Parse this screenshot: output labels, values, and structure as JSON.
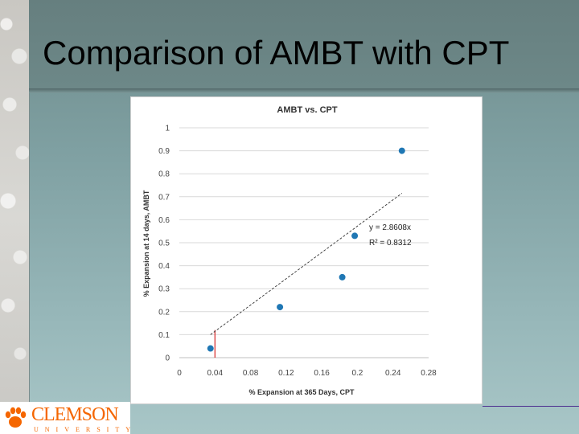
{
  "slide": {
    "title": "Comparison of AMBT with CPT"
  },
  "logo": {
    "wordmark": "CLEMSON",
    "subtitle": "UNIVERSITY"
  },
  "colors": {
    "point": "#1f77b4",
    "trendline": "#333333",
    "reference_line": "#d62728",
    "logo_orange": "#f56600"
  },
  "chart_data": {
    "type": "scatter",
    "title": "AMBT vs. CPT",
    "xlabel": "% Expansion  at 365 Days, CPT",
    "ylabel": "% Expansion  at 14 days, AMBT",
    "xlim": [
      0,
      0.28
    ],
    "ylim": [
      0,
      1
    ],
    "x_ticks": [
      0,
      0.04,
      0.08,
      0.12,
      0.16,
      0.2,
      0.24,
      0.28
    ],
    "x_tick_labels": [
      "0",
      "0.04",
      "0.08",
      "0.12",
      "0.16",
      "0.2",
      "0.24",
      "0.28"
    ],
    "y_ticks": [
      0,
      0.1,
      0.2,
      0.3,
      0.4,
      0.5,
      0.6,
      0.7,
      0.8,
      0.9,
      1
    ],
    "y_tick_labels": [
      "0",
      "0.1",
      "0.2",
      "0.3",
      "0.4",
      "0.5",
      "0.6",
      "0.7",
      "0.8",
      "0.9",
      "1"
    ],
    "grid": true,
    "points": [
      {
        "x": 0.035,
        "y": 0.04
      },
      {
        "x": 0.113,
        "y": 0.22
      },
      {
        "x": 0.183,
        "y": 0.35
      },
      {
        "x": 0.197,
        "y": 0.53
      },
      {
        "x": 0.25,
        "y": 0.9
      }
    ],
    "trendline": {
      "equation": "y = 2.8608x",
      "r_squared": "R² = 0.8312",
      "slope": 2.8608,
      "x_range": [
        0.035,
        0.25
      ]
    },
    "reference_line": {
      "x": 0.04,
      "y_range": [
        0,
        0.12
      ]
    }
  }
}
